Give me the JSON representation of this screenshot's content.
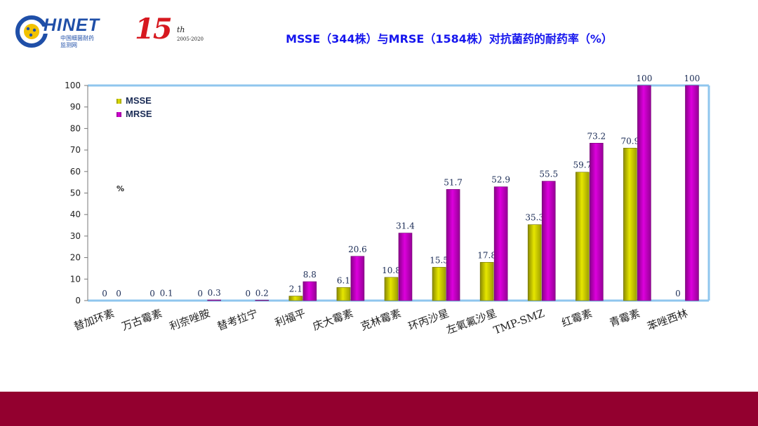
{
  "header": {
    "logo_text": "HINET",
    "logo_sub_1": "中国细菌耐药",
    "logo_sub_2": "监测网",
    "anniversary_number": "15",
    "anniversary_suffix": "th",
    "anniversary_years": "2005-2020"
  },
  "title": "MSSE（344株）与MRSE（1584株）对抗菌药的耐药率（%）",
  "colors": {
    "msse": "#e6e600",
    "mrse": "#dd00dd",
    "axis_frame": "#8fc6ee",
    "footer": "#93002f",
    "title": "#1616ee"
  },
  "chart_data": {
    "type": "bar",
    "unit_label": "%",
    "categories": [
      "替加环素",
      "万古霉素",
      "利奈唑胺",
      "替考拉宁",
      "利福平",
      "庆大霉素",
      "克林霉素",
      "环丙沙星",
      "左氧氟沙星",
      "TMP-SMZ",
      "红霉素",
      "青霉素",
      "苯唑西林"
    ],
    "series": [
      {
        "name": "MSSE",
        "values": [
          0,
          0,
          0,
          0,
          2.1,
          6.1,
          10.8,
          15.5,
          17.8,
          35.3,
          59.7,
          70.9,
          0
        ]
      },
      {
        "name": "MRSE",
        "values": [
          0,
          0.1,
          0.3,
          0.2,
          8.8,
          20.6,
          31.4,
          51.7,
          52.9,
          55.5,
          73.2,
          100,
          100
        ]
      }
    ],
    "ylim": [
      0,
      100
    ],
    "yticks": [
      0,
      10,
      20,
      30,
      40,
      50,
      60,
      70,
      80,
      90,
      100
    ],
    "legend": "top-left",
    "grid": false
  }
}
